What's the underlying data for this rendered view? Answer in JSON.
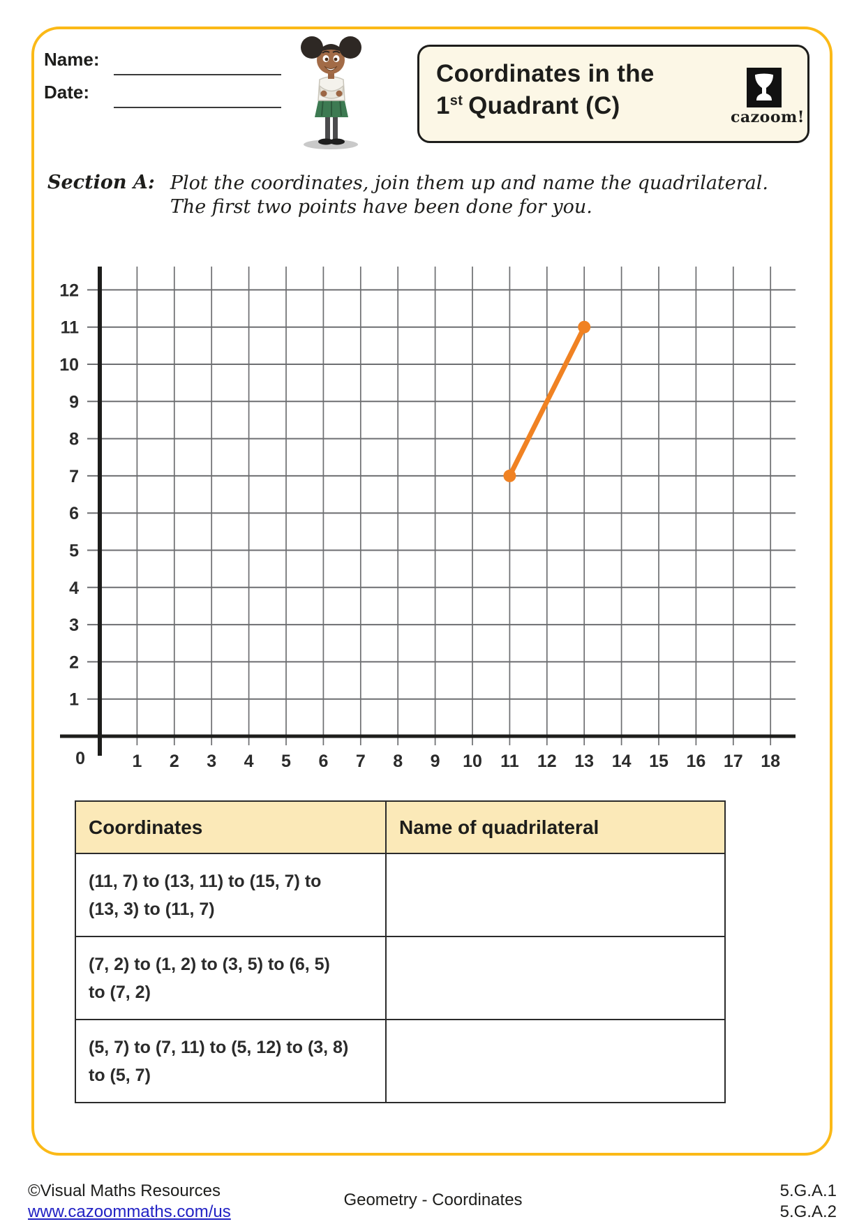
{
  "page": {
    "border_color": "#fbb917"
  },
  "header": {
    "name_label": "Name:",
    "date_label": "Date:",
    "title_line1": "Coordinates in the",
    "title_number": "1",
    "title_sup": "st",
    "title_rest": "Quadrant (C)",
    "logo_text": "cazoom!"
  },
  "section_a": {
    "label": "Section A:",
    "instruction_line1": "Plot the coordinates, join them up and name the quadrilateral.",
    "instruction_line2": "The first two points have been done for you."
  },
  "chart_data": {
    "type": "line",
    "title": "",
    "xlabel": "",
    "ylabel": "",
    "x_range": [
      0,
      18
    ],
    "y_range": [
      0,
      12
    ],
    "origin_label": "0",
    "x_ticks": [
      1,
      2,
      3,
      4,
      5,
      6,
      7,
      8,
      9,
      10,
      11,
      12,
      13,
      14,
      15,
      16,
      17,
      18
    ],
    "y_ticks": [
      1,
      2,
      3,
      4,
      5,
      6,
      7,
      8,
      9,
      10,
      11,
      12
    ],
    "grid": true,
    "gridline_color": "#6d6e71",
    "axis_color": "#1d1d1b",
    "series": [
      {
        "name": "plotted-segment",
        "color": "#f08223",
        "points": [
          [
            11,
            7
          ],
          [
            13,
            11
          ]
        ]
      }
    ]
  },
  "table": {
    "headers": [
      "Coordinates",
      "Name of quadrilateral"
    ],
    "rows": [
      {
        "coordinates_line1": "(11, 7) to (13, 11) to (15, 7) to",
        "coordinates_line2": "(13, 3) to (11, 7)",
        "quadrilateral_name": ""
      },
      {
        "coordinates_line1": "(7, 2) to (1, 2) to (3, 5) to (6, 5)",
        "coordinates_line2": "to (7, 2)",
        "quadrilateral_name": ""
      },
      {
        "coordinates_line1": "(5, 7) to (7, 11) to (5, 12) to (3, 8)",
        "coordinates_line2": "to (5, 7)",
        "quadrilateral_name": ""
      }
    ]
  },
  "footer": {
    "copyright": "©Visual Maths Resources",
    "url": "www.cazoommaths.com/us",
    "center": "Geometry - Coordinates",
    "standards": [
      "5.G.A.1",
      "5.G.A.2"
    ]
  }
}
